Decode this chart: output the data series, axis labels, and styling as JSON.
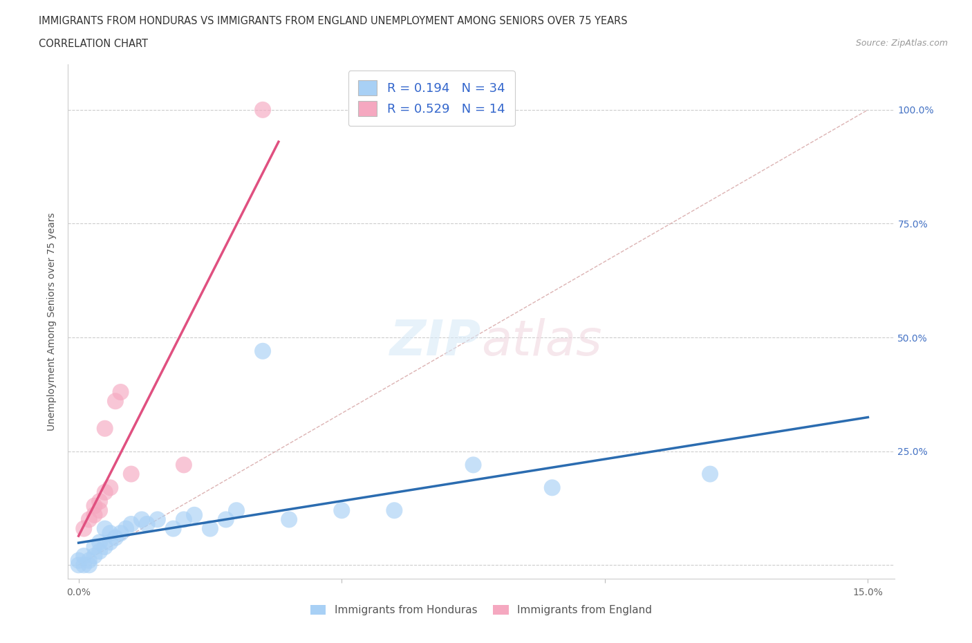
{
  "title_line1": "IMMIGRANTS FROM HONDURAS VS IMMIGRANTS FROM ENGLAND UNEMPLOYMENT AMONG SENIORS OVER 75 YEARS",
  "title_line2": "CORRELATION CHART",
  "source_text": "Source: ZipAtlas.com",
  "ylabel": "Unemployment Among Seniors over 75 years",
  "legend_label1": "Immigrants from Honduras",
  "legend_label2": "Immigrants from England",
  "r1": 0.194,
  "n1": 34,
  "r2": 0.529,
  "n2": 14,
  "color_blue": "#A8D0F5",
  "color_pink": "#F5A8C0",
  "line_blue": "#2B6CB0",
  "line_pink": "#E05080",
  "honduras_x": [
    0.0,
    0.0,
    0.001,
    0.001,
    0.002,
    0.002,
    0.003,
    0.003,
    0.004,
    0.004,
    0.005,
    0.005,
    0.006,
    0.006,
    0.007,
    0.008,
    0.009,
    0.01,
    0.012,
    0.013,
    0.015,
    0.018,
    0.02,
    0.022,
    0.025,
    0.028,
    0.03,
    0.035,
    0.04,
    0.05,
    0.06,
    0.075,
    0.09,
    0.12
  ],
  "honduras_y": [
    0.0,
    0.01,
    0.0,
    0.02,
    0.0,
    0.01,
    0.02,
    0.04,
    0.03,
    0.05,
    0.04,
    0.08,
    0.05,
    0.07,
    0.06,
    0.07,
    0.08,
    0.09,
    0.1,
    0.09,
    0.1,
    0.08,
    0.1,
    0.11,
    0.08,
    0.1,
    0.12,
    0.47,
    0.1,
    0.12,
    0.12,
    0.22,
    0.17,
    0.2
  ],
  "england_x": [
    0.001,
    0.002,
    0.003,
    0.003,
    0.004,
    0.004,
    0.005,
    0.005,
    0.006,
    0.007,
    0.008,
    0.01,
    0.02,
    0.035
  ],
  "england_y": [
    0.08,
    0.1,
    0.11,
    0.13,
    0.12,
    0.14,
    0.3,
    0.16,
    0.17,
    0.36,
    0.38,
    0.2,
    0.22,
    1.0
  ],
  "xlim_min": -0.002,
  "xlim_max": 0.155,
  "ylim_min": -0.03,
  "ylim_max": 1.1,
  "x_ticks": [
    0.0,
    0.05,
    0.1,
    0.15
  ],
  "x_tick_labels": [
    "0.0%",
    "",
    "",
    "15.0%"
  ],
  "y_ticks_right": [
    0.25,
    0.5,
    0.75,
    1.0
  ],
  "y_tick_labels_right": [
    "25.0%",
    "50.0%",
    "75.0%",
    "100.0%"
  ]
}
